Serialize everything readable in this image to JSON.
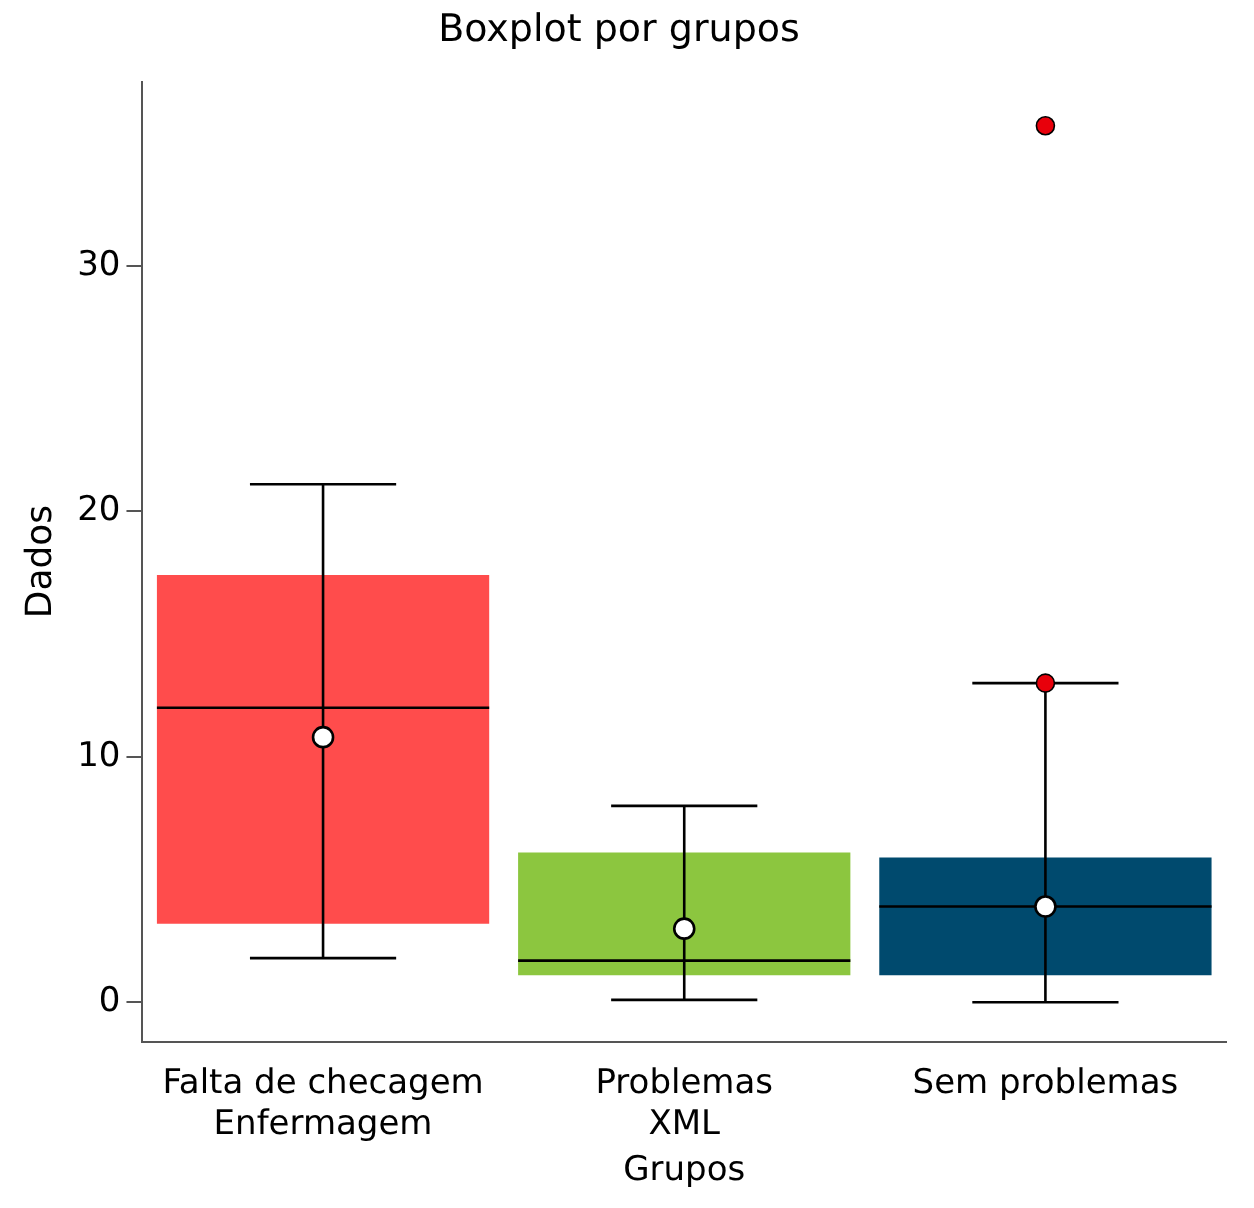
{
  "chart_data": {
    "type": "box",
    "title": "Boxplot por grupos",
    "xlabel": "Grupos",
    "ylabel": "Dados",
    "categories": [
      "Falta de checagem\nEnfermagem",
      "Problemas\nXML",
      "Sem problemas"
    ],
    "colors": [
      "#ff4c4c",
      "#8cc63f",
      "#004a6e"
    ],
    "boxes": [
      {
        "low": 1.8,
        "q1": 3.2,
        "median": 12.0,
        "q3": 17.4,
        "high": 21.1,
        "mean": 10.8
      },
      {
        "low": 0.1,
        "q1": 1.1,
        "median": 1.7,
        "q3": 6.1,
        "high": 8.0,
        "mean": 3.0
      },
      {
        "low": 0,
        "q1": 1.1,
        "median": 3.9,
        "q3": 5.9,
        "high": 13.0,
        "mean": 3.9,
        "outliers": [
          13.0,
          35.7
        ]
      }
    ],
    "ylim": [
      -1.6,
      37.5
    ],
    "yticks": [
      0,
      10,
      20,
      30
    ],
    "grid": false,
    "legend": false
  }
}
